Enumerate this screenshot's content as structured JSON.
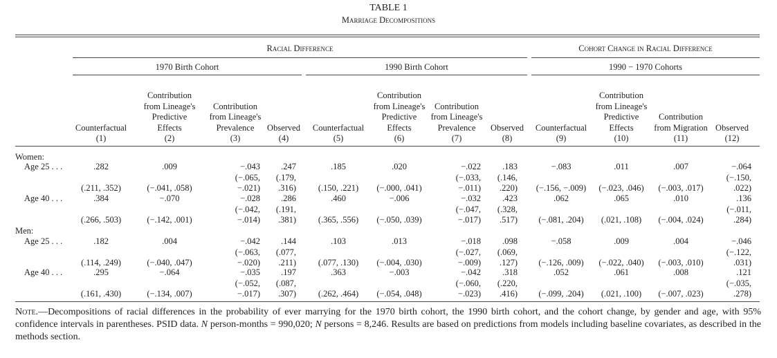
{
  "header": {
    "title": "TABLE 1",
    "subtitle": "Marriage Decompositions"
  },
  "table": {
    "spanners": [
      {
        "label": "Racial Difference",
        "subs": [
          "1970 Birth Cohort",
          "1990 Birth Cohort"
        ]
      },
      {
        "label": "Cohort Change in Racial Difference",
        "subs": [
          "1990 − 1970 Cohorts"
        ]
      }
    ],
    "columns": [
      {
        "label": "Counterfactual",
        "number": "(1)"
      },
      {
        "label": "Contribution from Lineage's Predictive Effects",
        "number": "(2)"
      },
      {
        "label": "Contribution from Lineage's Prevalence",
        "number": "(3)"
      },
      {
        "label": "Observed",
        "number": "(4)"
      },
      {
        "label": "Counterfactual",
        "number": "(5)"
      },
      {
        "label": "Contribution from Lineage's Predictive Effects",
        "number": "(6)"
      },
      {
        "label": "Contribution from Lineage's Prevalence",
        "number": "(7)"
      },
      {
        "label": "Observed",
        "number": "(8)"
      },
      {
        "label": "Counterfactual",
        "number": "(9)"
      },
      {
        "label": "Contribution from Lineage's Predictive Effects",
        "number": "(10)"
      },
      {
        "label": "Contribution from Migration",
        "number": "(11)"
      },
      {
        "label": "Observed",
        "number": "(12)"
      }
    ],
    "groups": [
      {
        "label": "Women:",
        "rows": [
          {
            "label": "Age 25 . . .",
            "cells": [
              {
                "estimate": ".282",
                "ci": "(.211, .352)"
              },
              {
                "estimate": ".009",
                "ci": "(−.041, .058)"
              },
              {
                "estimate": "−.043",
                "ci": "(−.065, −.021)"
              },
              {
                "estimate": ".247",
                "ci": "(.179, .316)"
              },
              {
                "estimate": ".185",
                "ci": "(.150, .221)"
              },
              {
                "estimate": ".020",
                "ci": "(−.000, .041)"
              },
              {
                "estimate": "−.022",
                "ci": "(−.033, −.011)"
              },
              {
                "estimate": ".183",
                "ci": "(.146, .220)"
              },
              {
                "estimate": "−.083",
                "ci": "(−.156, −.009)"
              },
              {
                "estimate": ".011",
                "ci": "(−.023, .046)"
              },
              {
                "estimate": ".007",
                "ci": "(−.003, .017)"
              },
              {
                "estimate": "−.064",
                "ci": "(−.150, .022)"
              }
            ]
          },
          {
            "label": "Age 40 . . .",
            "cells": [
              {
                "estimate": ".384",
                "ci": "(.266, .503)"
              },
              {
                "estimate": "−.070",
                "ci": "(−.142, .001)"
              },
              {
                "estimate": "−.028",
                "ci": "(−.042, −.014)"
              },
              {
                "estimate": ".286",
                "ci": "(.191, .381)"
              },
              {
                "estimate": ".460",
                "ci": "(.365, .556)"
              },
              {
                "estimate": "−.006",
                "ci": "(−.050, .039)"
              },
              {
                "estimate": "−.032",
                "ci": "(−.047, −.017)"
              },
              {
                "estimate": ".423",
                "ci": "(.328, .517)"
              },
              {
                "estimate": ".062",
                "ci": "(−.081, .204)"
              },
              {
                "estimate": ".065",
                "ci": "(.021, .108)"
              },
              {
                "estimate": ".010",
                "ci": "(−.004, .024)"
              },
              {
                "estimate": ".136",
                "ci": "(−.011, .284)"
              }
            ]
          }
        ]
      },
      {
        "label": "Men:",
        "rows": [
          {
            "label": "Age 25 . . .",
            "cells": [
              {
                "estimate": ".182",
                "ci": "(.114, .249)"
              },
              {
                "estimate": ".004",
                "ci": "(−.040, .047)"
              },
              {
                "estimate": "−.042",
                "ci": "(−.063, −.020)"
              },
              {
                "estimate": ".144",
                "ci": "(.077, .211)"
              },
              {
                "estimate": ".103",
                "ci": "(.077, .130)"
              },
              {
                "estimate": ".013",
                "ci": "(−.004, .030)"
              },
              {
                "estimate": "−.018",
                "ci": "(−.027, −.009)"
              },
              {
                "estimate": ".098",
                "ci": "(.069, .127)"
              },
              {
                "estimate": "−.058",
                "ci": "(−.126, .009)"
              },
              {
                "estimate": ".009",
                "ci": "(−.022, .040)"
              },
              {
                "estimate": ".004",
                "ci": "(−.003, .010)"
              },
              {
                "estimate": "−.046",
                "ci": "(−.122, .031)"
              }
            ]
          },
          {
            "label": "Age 40 . . .",
            "cells": [
              {
                "estimate": ".295",
                "ci": "(.161, .430)"
              },
              {
                "estimate": "−.064",
                "ci": "(−.134, .007)"
              },
              {
                "estimate": "−.035",
                "ci": "(−.052, −.017)"
              },
              {
                "estimate": ".197",
                "ci": "(.087, .307)"
              },
              {
                "estimate": ".363",
                "ci": "(.262, .464)"
              },
              {
                "estimate": "−.003",
                "ci": "(−.054, .048)"
              },
              {
                "estimate": "−.042",
                "ci": "(−.060, −.023)"
              },
              {
                "estimate": ".318",
                "ci": "(.220, .416)"
              },
              {
                "estimate": ".052",
                "ci": "(−.099, .204)"
              },
              {
                "estimate": ".061",
                "ci": "(.021, .100)"
              },
              {
                "estimate": ".008",
                "ci": "(−.007, .023)"
              },
              {
                "estimate": ".121",
                "ci": "(−.035, .278)"
              }
            ]
          }
        ]
      }
    ]
  },
  "note": {
    "label": "Note.",
    "parts": [
      "—Decompositions of racial differences in the probability of ever marrying for the 1970 birth cohort, the 1990 birth cohort, and the cohort change, by gender and age, with 95% confidence intervals in parentheses. PSID data. ",
      "N",
      " person-months = 990,020; ",
      "N",
      " persons = 8,246. Results are based on predictions from models including baseline covariates, as described in the methods section."
    ]
  }
}
